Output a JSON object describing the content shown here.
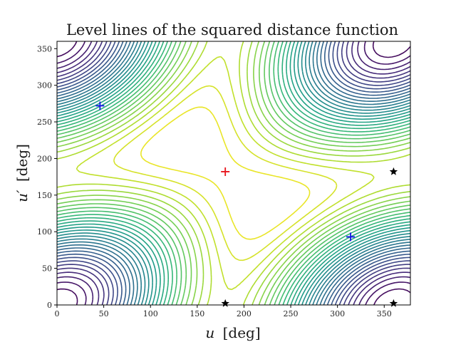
{
  "chart_data": {
    "type": "contour",
    "title": "Level lines of the squared distance function",
    "xlabel": {
      "symbol": "u",
      "unit": "[deg]"
    },
    "ylabel": {
      "symbol": "u′",
      "unit": "[deg]"
    },
    "xlim": [
      0,
      378
    ],
    "ylim": [
      0,
      360
    ],
    "xticks": [
      0,
      50,
      100,
      150,
      200,
      250,
      300,
      350
    ],
    "yticks": [
      0,
      50,
      100,
      150,
      200,
      250,
      300,
      350
    ],
    "colormap": "viridis",
    "grid": false,
    "markers": [
      {
        "name": "maximum",
        "shape": "plus",
        "color": "#e8141c",
        "x": 180,
        "y": 182
      },
      {
        "name": "saddle",
        "shape": "plus",
        "color": "#1414e6",
        "x": 46,
        "y": 272
      },
      {
        "name": "saddle",
        "shape": "plus",
        "color": "#1414e6",
        "x": 314,
        "y": 93
      },
      {
        "name": "minimum",
        "shape": "star",
        "color": "#000000",
        "x": 180,
        "y": 2
      },
      {
        "name": "minimum",
        "shape": "star",
        "color": "#000000",
        "x": 360,
        "y": 182
      },
      {
        "name": "minimum",
        "shape": "star",
        "color": "#000000",
        "x": 360,
        "y": 2
      }
    ]
  }
}
